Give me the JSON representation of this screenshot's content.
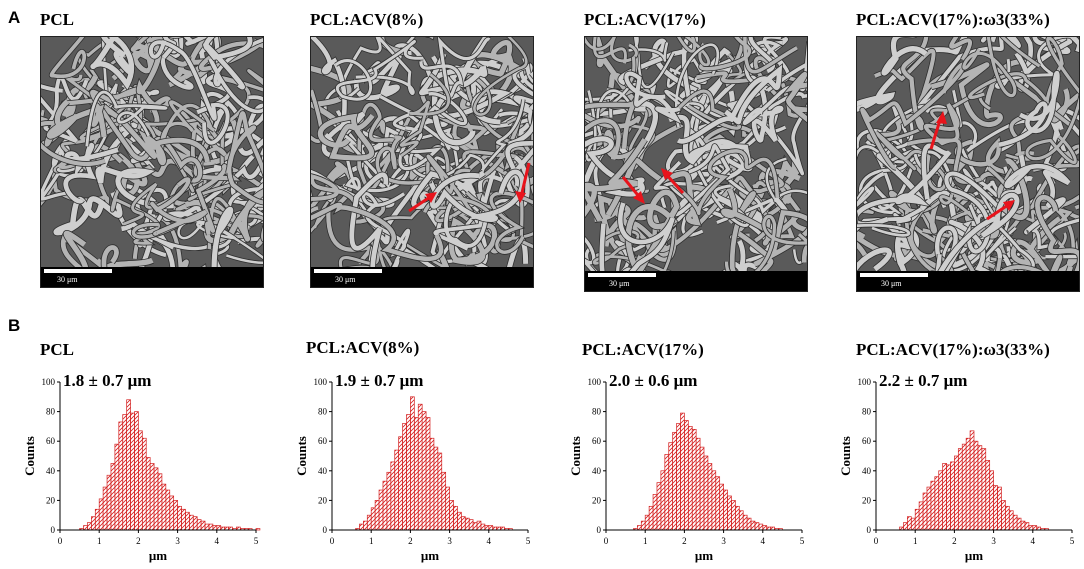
{
  "panels": {
    "a": "A",
    "b": "B"
  },
  "colors": {
    "bar_stroke": "#d42020",
    "arrow": "#e8141c",
    "axis": "#000000",
    "sem_bg": "#6e6e6e"
  },
  "sem": [
    {
      "title": "PCL",
      "scale_label": "30 μm"
    },
    {
      "title": "PCL:ACV(8%)",
      "scale_label": "30 μm"
    },
    {
      "title": "PCL:ACV(17%)",
      "scale_label": "30 μm"
    },
    {
      "title": "PCL:ACV(17%):ω3(33%)",
      "scale_label": "30 μm"
    }
  ],
  "chart_data": [
    {
      "type": "bar",
      "title": "PCL",
      "annotation": "1.8 ± 0.7 μm",
      "xlabel": "μm",
      "ylabel": "Counts",
      "xlim": [
        0,
        5
      ],
      "ylim": [
        0,
        100
      ],
      "xticks": [
        0,
        1,
        2,
        3,
        4,
        5
      ],
      "yticks": [
        0,
        20,
        40,
        60,
        80,
        100
      ],
      "bin_width": 0.1,
      "bin_start": 0.5,
      "values": [
        1,
        3,
        5,
        9,
        14,
        21,
        29,
        37,
        45,
        58,
        73,
        78,
        88,
        79,
        80,
        67,
        62,
        49,
        45,
        42,
        38,
        31,
        27,
        23,
        20,
        16,
        14,
        12,
        10,
        9,
        7,
        6,
        4,
        4,
        3,
        3,
        2,
        2,
        2,
        1,
        2,
        1,
        1,
        1,
        0,
        1
      ]
    },
    {
      "type": "bar",
      "title": "PCL:ACV(8%)",
      "annotation": "1.9 ± 0.7 μm",
      "xlabel": "μm",
      "ylabel": "Counts",
      "xlim": [
        0,
        5
      ],
      "ylim": [
        0,
        100
      ],
      "xticks": [
        0,
        1,
        2,
        3,
        4,
        5
      ],
      "yticks": [
        0,
        20,
        40,
        60,
        80,
        100
      ],
      "bin_width": 0.1,
      "bin_start": 0.6,
      "values": [
        1,
        4,
        6,
        10,
        15,
        20,
        27,
        33,
        39,
        46,
        54,
        63,
        72,
        78,
        90,
        76,
        85,
        80,
        76,
        62,
        56,
        52,
        39,
        29,
        20,
        16,
        12,
        9,
        8,
        7,
        5,
        6,
        4,
        3,
        3,
        2,
        2,
        2,
        1,
        1
      ]
    },
    {
      "type": "bar",
      "title": "PCL:ACV(17%)",
      "annotation": "2.0 ± 0.6 μm",
      "xlabel": "μm",
      "ylabel": "Counts",
      "xlim": [
        0,
        5
      ],
      "ylim": [
        0,
        100
      ],
      "xticks": [
        0,
        1,
        2,
        3,
        4,
        5
      ],
      "yticks": [
        0,
        20,
        40,
        60,
        80,
        100
      ],
      "bin_width": 0.1,
      "bin_start": 0.7,
      "values": [
        1,
        3,
        6,
        10,
        16,
        24,
        32,
        40,
        51,
        59,
        66,
        72,
        79,
        74,
        70,
        68,
        62,
        56,
        50,
        45,
        40,
        36,
        31,
        27,
        23,
        20,
        16,
        13,
        10,
        8,
        6,
        5,
        4,
        3,
        2,
        2,
        1,
        1
      ]
    },
    {
      "type": "bar",
      "title": "PCL:ACV(17%):ω3(33%)",
      "annotation": "2.2 ± 0.7 μm",
      "xlabel": "μm",
      "ylabel": "Counts",
      "xlim": [
        0,
        5
      ],
      "ylim": [
        0,
        100
      ],
      "xticks": [
        0,
        1,
        2,
        3,
        4,
        5
      ],
      "yticks": [
        0,
        20,
        40,
        60,
        80,
        100
      ],
      "bin_width": 0.1,
      "bin_start": 0.6,
      "values": [
        2,
        5,
        9,
        8,
        14,
        19,
        25,
        29,
        33,
        36,
        40,
        45,
        44,
        46,
        50,
        55,
        58,
        62,
        67,
        60,
        57,
        55,
        47,
        40,
        30,
        29,
        20,
        16,
        13,
        10,
        8,
        6,
        5,
        3,
        3,
        2,
        1,
        1
      ]
    }
  ]
}
